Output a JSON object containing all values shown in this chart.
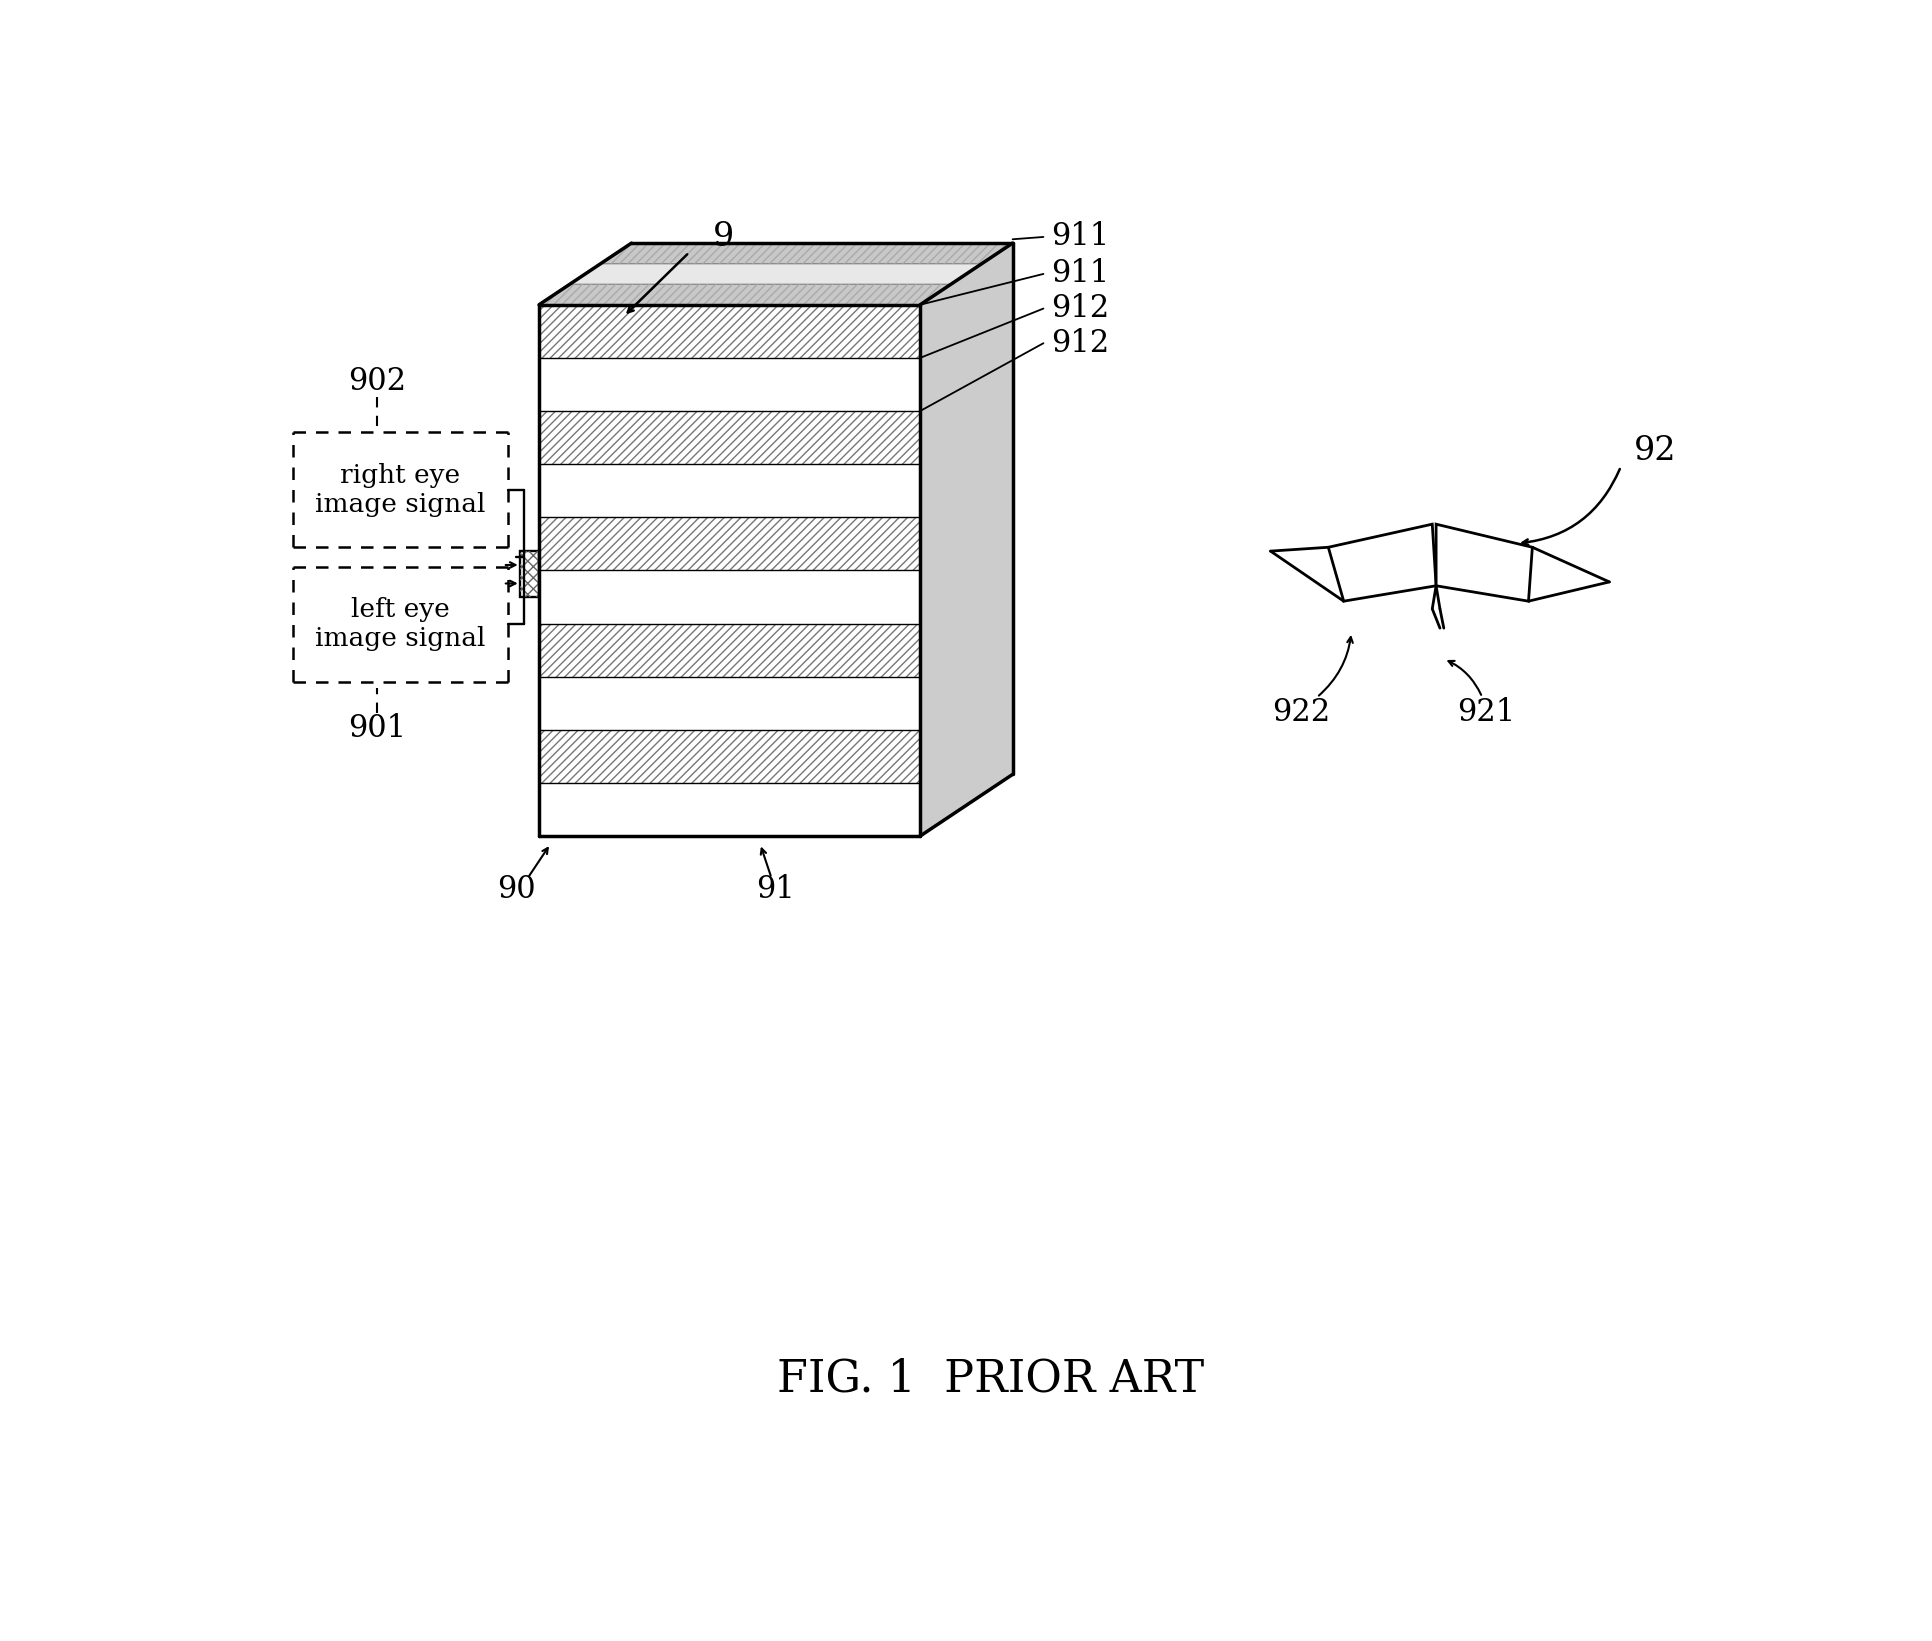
{
  "title": "FIG. 1  PRIOR ART",
  "bg_color": "#ffffff",
  "line_color": "#000000",
  "label_9": "9",
  "label_90": "90",
  "label_91": "91",
  "label_911a": "911",
  "label_911b": "911",
  "label_912a": "912",
  "label_912b": "912",
  "label_901": "901",
  "label_902": "902",
  "label_92": "92",
  "label_921": "921",
  "label_922": "922",
  "label_right_eye": "right eye\nimage signal",
  "label_left_eye": "left eye\nimage signal",
  "title_fontsize": 32,
  "label_fontsize": 22
}
